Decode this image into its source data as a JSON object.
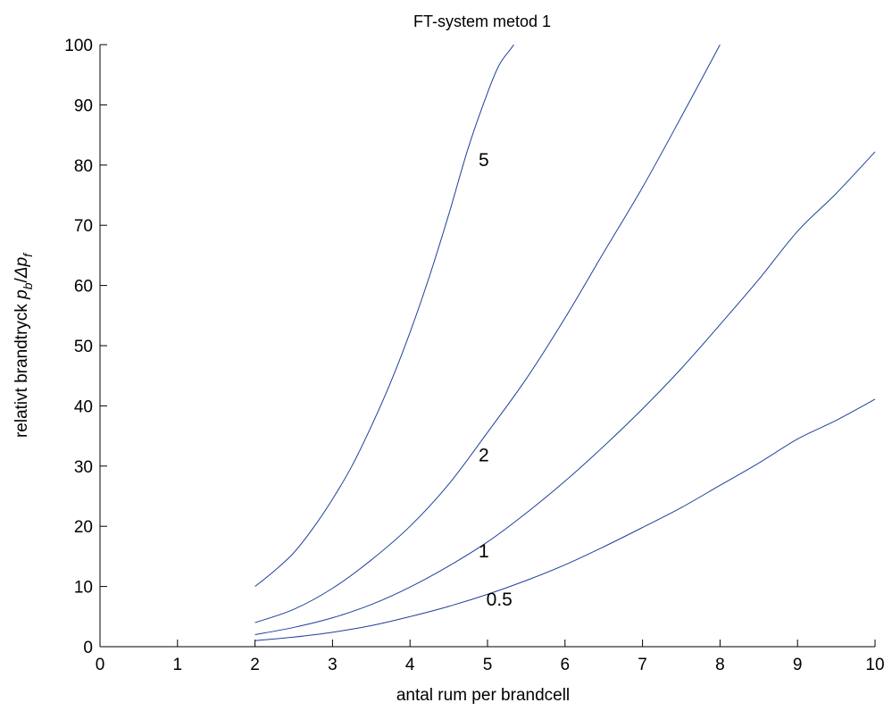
{
  "chart_data": {
    "type": "line",
    "title": "FT-system  metod 1",
    "xlabel": "antal rum per brandcell",
    "ylabel": {
      "prefix": "relativt brandtryck ",
      "p1": "p",
      "sub1": "b",
      "slash": "/",
      "delta": "Δp",
      "sub2": "f"
    },
    "xlim": [
      0,
      10
    ],
    "ylim": [
      0,
      100
    ],
    "xticks": [
      "0",
      "1",
      "2",
      "3",
      "4",
      "5",
      "6",
      "7",
      "8",
      "9",
      "10"
    ],
    "yticks": [
      "0",
      "10",
      "20",
      "30",
      "40",
      "50",
      "60",
      "70",
      "80",
      "90",
      "100"
    ],
    "grid": false,
    "line_color": "#1f3f99",
    "series": [
      {
        "name": "5",
        "label_at": [
          5.0,
          81
        ],
        "x": [
          2.0,
          2.25,
          2.5,
          2.75,
          3.0,
          3.25,
          3.5,
          3.75,
          4.0,
          4.25,
          4.5,
          4.75,
          5.0,
          5.15,
          5.3,
          5.34
        ],
        "y": [
          10.0,
          12.6,
          15.6,
          19.7,
          24.5,
          30.0,
          36.6,
          43.9,
          52.2,
          61.5,
          71.8,
          82.8,
          92.0,
          96.6,
          99.3,
          100.0
        ]
      },
      {
        "name": "2",
        "label_at": [
          5.0,
          32
        ],
        "x": [
          2.0,
          2.5,
          3.0,
          3.5,
          4.0,
          4.5,
          5.0,
          5.5,
          6.0,
          6.5,
          7.0,
          7.5,
          8.0
        ],
        "y": [
          4.0,
          6.2,
          9.7,
          14.4,
          20.0,
          27.0,
          35.6,
          44.5,
          54.6,
          65.5,
          76.3,
          88.0,
          100.0
        ]
      },
      {
        "name": "1",
        "label_at": [
          5.0,
          16
        ],
        "x": [
          2.0,
          2.5,
          3.0,
          3.5,
          4.0,
          4.5,
          5.0,
          5.5,
          6.0,
          6.5,
          7.0,
          7.5,
          8.0,
          8.5,
          9.0,
          9.5,
          10.0
        ],
        "y": [
          2.0,
          3.2,
          4.8,
          7.0,
          9.9,
          13.4,
          17.4,
          22.2,
          27.5,
          33.3,
          39.5,
          46.2,
          53.5,
          61.0,
          69.0,
          75.3,
          82.2
        ]
      },
      {
        "name": "0.5",
        "label_at": [
          5.1,
          8
        ],
        "x": [
          2.0,
          2.5,
          3.0,
          3.5,
          4.0,
          4.5,
          5.0,
          5.5,
          6.0,
          6.5,
          7.0,
          7.5,
          8.0,
          8.5,
          9.0,
          9.5,
          10.0
        ],
        "y": [
          1.0,
          1.6,
          2.4,
          3.5,
          5.0,
          6.7,
          8.7,
          11.0,
          13.6,
          16.6,
          19.8,
          23.1,
          26.8,
          30.5,
          34.5,
          37.6,
          41.1
        ]
      }
    ]
  }
}
